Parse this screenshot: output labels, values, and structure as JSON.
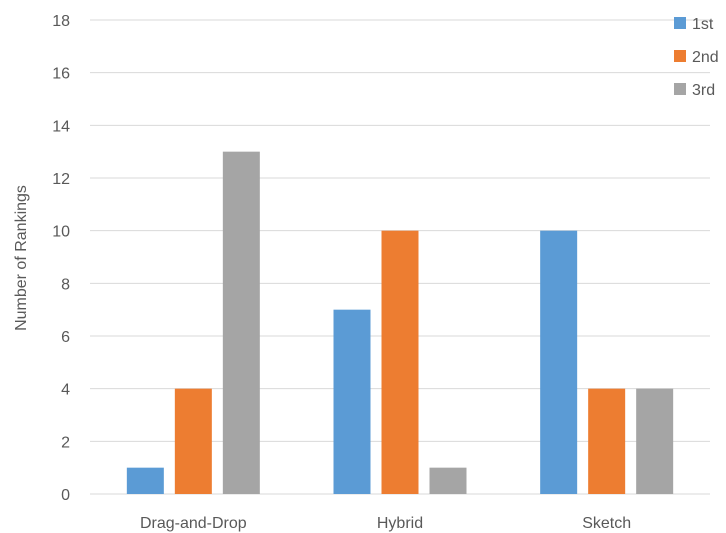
{
  "chart_data": {
    "type": "bar",
    "title": "",
    "xlabel": "",
    "ylabel": "Number of Rankings",
    "ylim": [
      0,
      18
    ],
    "yticks": [
      0,
      2,
      4,
      6,
      8,
      10,
      12,
      14,
      16,
      18
    ],
    "categories": [
      "Drag-and-Drop",
      "Hybrid",
      "Sketch"
    ],
    "series": [
      {
        "name": "1st",
        "color": "#5b9bd5",
        "values": [
          1,
          7,
          10
        ]
      },
      {
        "name": "2nd",
        "color": "#ed7d31",
        "values": [
          4,
          10,
          4
        ]
      },
      {
        "name": "3rd",
        "color": "#a5a5a5",
        "values": [
          13,
          1,
          4
        ]
      }
    ],
    "grid": true,
    "legend_position": "top-right"
  }
}
